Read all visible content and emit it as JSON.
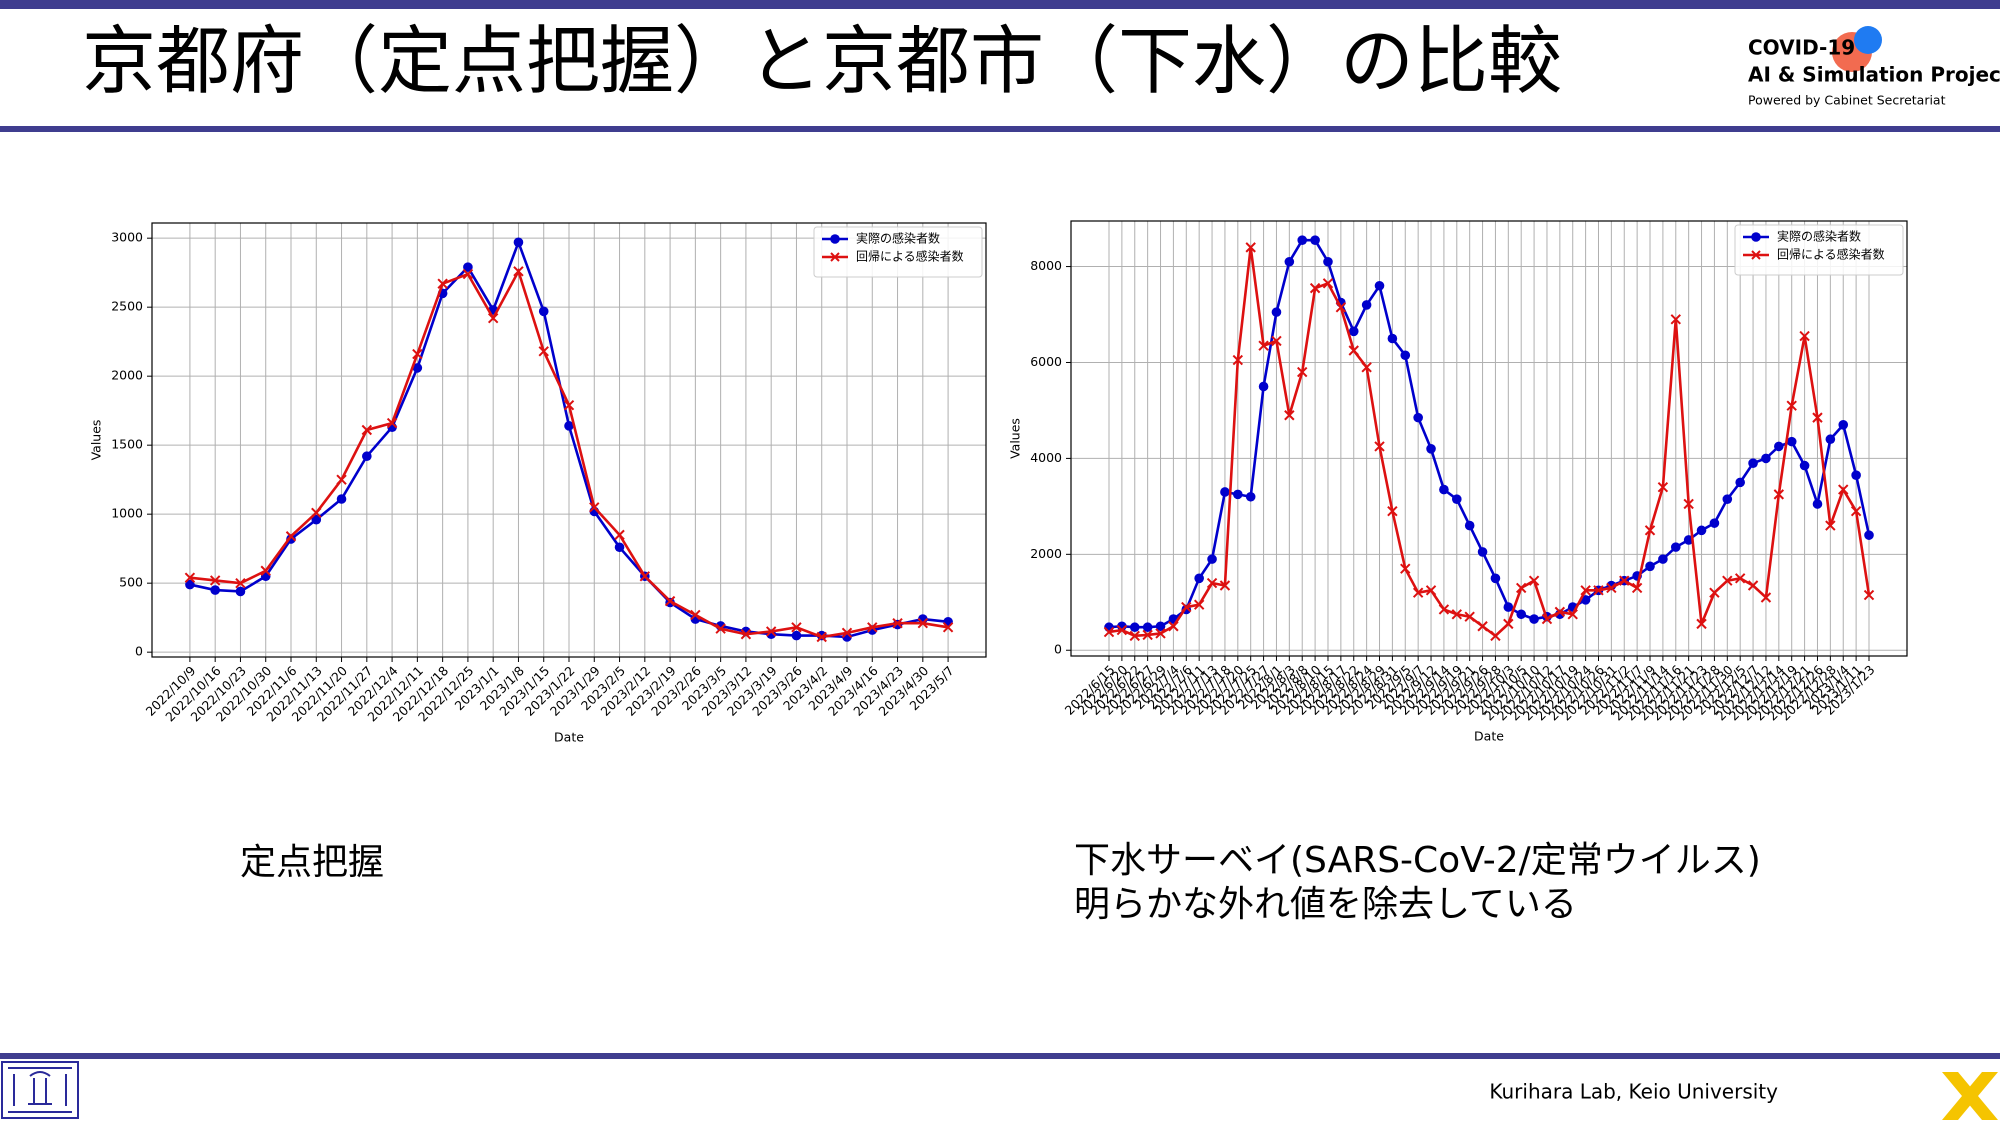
{
  "header": {
    "title": "京都府（定点把握）と京都市（下水）の比較"
  },
  "logo": {
    "line1": "COVID-19",
    "line2": "AI & Simulation Project",
    "line3": "Powered by Cabinet Secretariat"
  },
  "captions": {
    "left": "定点把握",
    "right_line1": "下水サーベイ(SARS-CoV-2/定常ウイルス)",
    "right_line2": "明らかな外れ値を除去している"
  },
  "footer": {
    "credit": "Kurihara Lab, Keio University"
  },
  "chart_data": [
    {
      "type": "line",
      "xlabel": "Date",
      "ylabel": "Values",
      "categories": [
        "2022/10/9",
        "2022/10/16",
        "2022/10/23",
        "2022/10/30",
        "2022/11/6",
        "2022/11/13",
        "2022/11/20",
        "2022/11/27",
        "2022/12/4",
        "2022/12/11",
        "2022/12/18",
        "2022/12/25",
        "2023/1/1",
        "2023/1/8",
        "2023/1/15",
        "2023/1/22",
        "2023/1/29",
        "2023/2/5",
        "2023/2/12",
        "2023/2/19",
        "2023/2/26",
        "2023/3/5",
        "2023/3/12",
        "2023/3/19",
        "2023/3/26",
        "2023/4/2",
        "2023/4/9",
        "2023/4/16",
        "2023/4/23",
        "2023/4/30",
        "2023/5/7"
      ],
      "series": [
        {
          "name": "実際の感染者数",
          "color": "#0000cc",
          "marker": "o",
          "values": [
            490,
            450,
            440,
            550,
            820,
            960,
            1110,
            1420,
            1630,
            2060,
            2600,
            2790,
            2480,
            2970,
            2470,
            1640,
            1020,
            760,
            550,
            360,
            240,
            190,
            150,
            130,
            120,
            120,
            110,
            160,
            200,
            240,
            220
          ]
        },
        {
          "name": "回帰による感染者数",
          "color": "#dd1111",
          "marker": "x",
          "values": [
            540,
            520,
            500,
            590,
            840,
            1010,
            1250,
            1610,
            1660,
            2160,
            2670,
            2740,
            2420,
            2760,
            2180,
            1790,
            1050,
            850,
            550,
            370,
            270,
            170,
            130,
            150,
            180,
            110,
            140,
            180,
            210,
            210,
            180
          ]
        }
      ],
      "ylim": [
        -35,
        3110
      ],
      "yticks": [
        0,
        500,
        1000,
        1500,
        2000,
        2500,
        3000
      ],
      "grid": true,
      "legend": "upper right"
    },
    {
      "type": "line",
      "xlabel": "Date",
      "ylabel": "Values",
      "categories": [
        "2022/6/15",
        "2022/6/20",
        "2022/6/22",
        "2022/6/27",
        "2022/6/29",
        "2022/7/4",
        "2022/7/6",
        "2022/7/11",
        "2022/7/13",
        "2022/7/18",
        "2022/7/20",
        "2022/7/25",
        "2022/7/27",
        "2022/8/1",
        "2022/8/3",
        "2022/8/8",
        "2022/8/10",
        "2022/8/15",
        "2022/8/17",
        "2022/8/22",
        "2022/8/24",
        "2022/8/29",
        "2022/8/31",
        "2022/9/5",
        "2022/9/7",
        "2022/9/12",
        "2022/9/14",
        "2022/9/19",
        "2022/9/21",
        "2022/9/26",
        "2022/9/28",
        "2022/10/3",
        "2022/10/5",
        "2022/10/10",
        "2022/10/12",
        "2022/10/17",
        "2022/10/19",
        "2022/10/24",
        "2022/10/26",
        "2022/10/31",
        "2022/11/2",
        "2022/11/7",
        "2022/11/9",
        "2022/11/14",
        "2022/11/16",
        "2022/11/21",
        "2022/11/23",
        "2022/11/28",
        "2022/11/30",
        "2022/12/5",
        "2022/12/7",
        "2022/12/12",
        "2022/12/14",
        "2022/12/19",
        "2022/12/21",
        "2022/12/26",
        "2022/12/28",
        "2023/1/4",
        "2023/1/11",
        "2023/1/23"
      ],
      "series": [
        {
          "name": "実際の感染者数",
          "color": "#0000cc",
          "marker": "o",
          "values": [
            480,
            500,
            480,
            480,
            500,
            650,
            850,
            1500,
            1900,
            3300,
            3250,
            3200,
            5500,
            7050,
            8100,
            8550,
            8550,
            8100,
            7250,
            6650,
            7200,
            7600,
            6500,
            6150,
            4850,
            4200,
            3350,
            3150,
            2600,
            2050,
            1500,
            900,
            750,
            650,
            700,
            750,
            900,
            1050,
            1250,
            1350,
            1450,
            1550,
            1750,
            1900,
            2150,
            2300,
            2500,
            2650,
            3150,
            3500,
            3900,
            4000,
            4250,
            4350,
            3850,
            3050,
            4400,
            4700,
            3650,
            2400
          ]
        },
        {
          "name": "回帰による感染者数",
          "color": "#dd1111",
          "marker": "x",
          "values": [
            380,
            420,
            300,
            320,
            350,
            500,
            900,
            950,
            1400,
            1350,
            6050,
            8400,
            6350,
            6450,
            4900,
            5800,
            7550,
            7650,
            7150,
            6250,
            5900,
            4250,
            2900,
            1700,
            1200,
            1250,
            850,
            750,
            700,
            500,
            300,
            550,
            1300,
            1450,
            650,
            800,
            750,
            1250,
            1250,
            1300,
            1450,
            1300,
            2500,
            3400,
            6900,
            3050,
            550,
            1200,
            1450,
            1500,
            1350,
            1100,
            3250,
            5100,
            6550,
            4850,
            2600,
            3350,
            2900,
            1150
          ]
        }
      ],
      "ylim": [
        -120,
        8950
      ],
      "yticks": [
        0,
        2000,
        4000,
        6000,
        8000
      ],
      "grid": true,
      "legend": "upper right"
    }
  ]
}
